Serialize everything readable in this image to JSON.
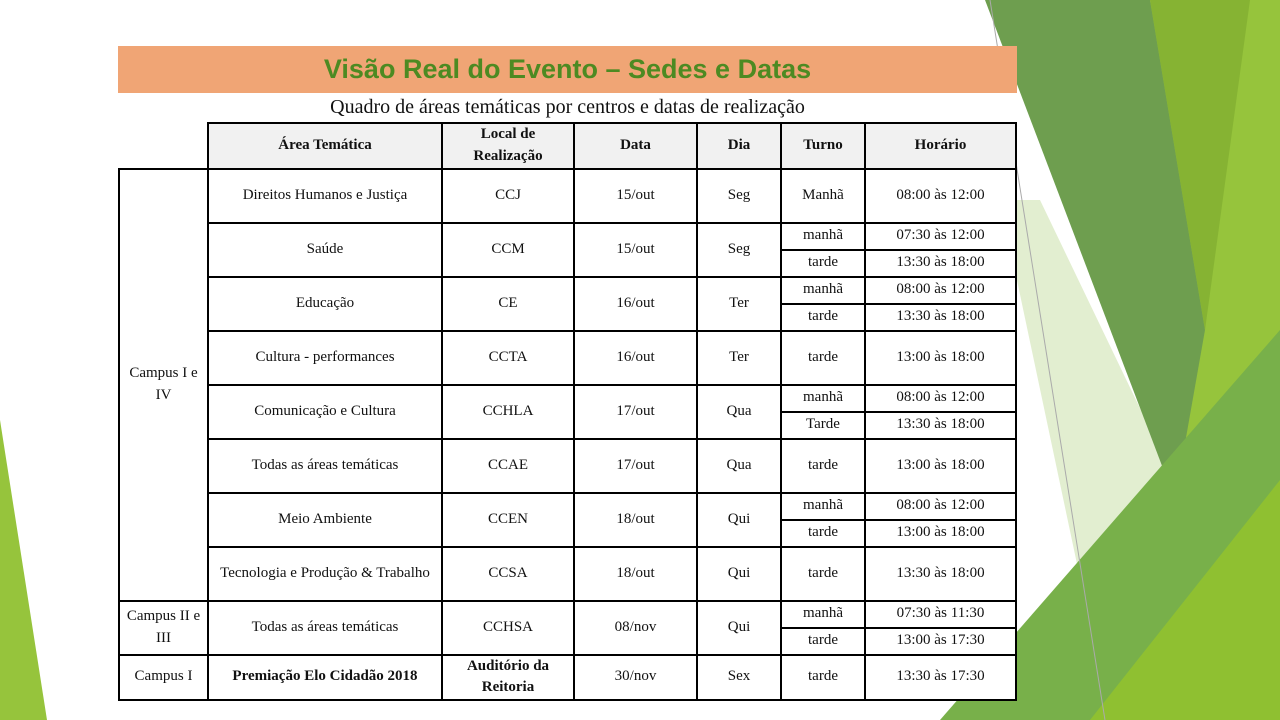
{
  "title": "Visão Real do Evento – Sedes e Datas",
  "subtitle": "Quadro de áreas temáticas por centros e datas de realização",
  "colors": {
    "title_bar": "#f0a575",
    "title_text": "#4d8a22",
    "accent_dark_green": "#6e9e4f",
    "accent_lime": "#96c43c"
  },
  "headers": {
    "campus": "",
    "area": "Área Temática",
    "local": "Local de Realização",
    "data": "Data",
    "dia": "Dia",
    "turno": "Turno",
    "horario": "Horário"
  },
  "groups": [
    {
      "campus": "Campus I e IV",
      "entries": [
        {
          "area": "Direitos Humanos e Justiça",
          "local": "CCJ",
          "data": "15/out",
          "dia": "Seg",
          "slots": [
            {
              "turno": "Manhã",
              "horario": "08:00 às 12:00"
            }
          ]
        },
        {
          "area": "Saúde",
          "local": "CCM",
          "data": "15/out",
          "dia": "Seg",
          "slots": [
            {
              "turno": "manhã",
              "horario": "07:30 às 12:00"
            },
            {
              "turno": "tarde",
              "horario": "13:30 às 18:00"
            }
          ]
        },
        {
          "area": "Educação",
          "local": "CE",
          "data": "16/out",
          "dia": "Ter",
          "slots": [
            {
              "turno": "manhã",
              "horario": "08:00 às 12:00"
            },
            {
              "turno": "tarde",
              "horario": "13:30 às 18:00"
            }
          ]
        },
        {
          "area": "Cultura - performances",
          "local": "CCTA",
          "data": "16/out",
          "dia": "Ter",
          "slots": [
            {
              "turno": "tarde",
              "horario": "13:00 às 18:00"
            }
          ]
        },
        {
          "area": "Comunicação e Cultura",
          "local": "CCHLA",
          "data": "17/out",
          "dia": "Qua",
          "slots": [
            {
              "turno": "manhã",
              "horario": "08:00 às 12:00"
            },
            {
              "turno": "Tarde",
              "horario": "13:30 às 18:00"
            }
          ]
        },
        {
          "area": "Todas as áreas temáticas",
          "local": "CCAE",
          "data": "17/out",
          "dia": "Qua",
          "slots": [
            {
              "turno": "tarde",
              "horario": "13:00 às 18:00"
            }
          ]
        },
        {
          "area": "Meio Ambiente",
          "local": "CCEN",
          "data": "18/out",
          "dia": "Qui",
          "slots": [
            {
              "turno": "manhã",
              "horario": "08:00 às 12:00"
            },
            {
              "turno": "tarde",
              "horario": "13:00 às 18:00"
            }
          ]
        },
        {
          "area": "Tecnologia e Produção & Trabalho",
          "local": "CCSA",
          "data": "18/out",
          "dia": "Qui",
          "slots": [
            {
              "turno": "tarde",
              "horario": "13:30 às 18:00"
            }
          ]
        }
      ]
    },
    {
      "campus": "Campus II e III",
      "entries": [
        {
          "area": "Todas as áreas temáticas",
          "local": "CCHSA",
          "data": "08/nov",
          "dia": "Qui",
          "slots": [
            {
              "turno": "manhã",
              "horario": "07:30 às 11:30"
            },
            {
              "turno": "tarde",
              "horario": "13:00 às 17:30"
            }
          ]
        }
      ]
    },
    {
      "campus": "Campus I",
      "entries": [
        {
          "area": "Premiação Elo Cidadão 2018",
          "local": "Auditório da Reitoria",
          "data": "30/nov",
          "dia": "Sex",
          "slots": [
            {
              "turno": "tarde",
              "horario": "13:30 às 17:30"
            }
          ]
        }
      ]
    }
  ]
}
